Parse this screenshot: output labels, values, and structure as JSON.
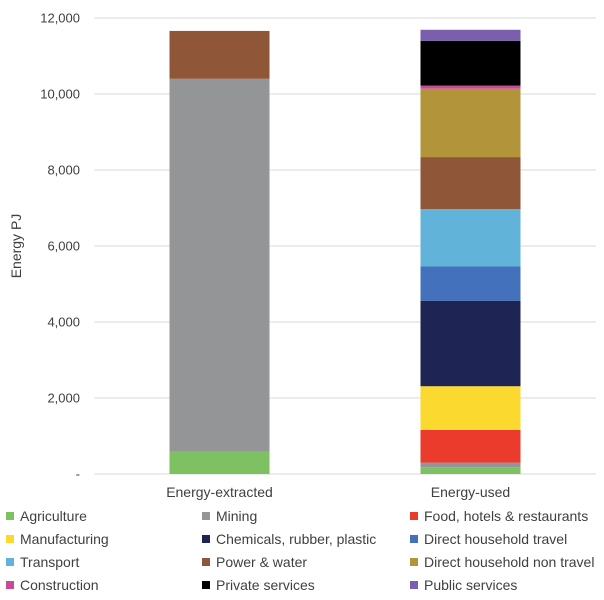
{
  "chart_data": {
    "type": "bar",
    "stacked": true,
    "ylabel": "Energy PJ",
    "ylim": [
      0,
      12000
    ],
    "yticks": [
      {
        "value": 0,
        "label": "-"
      },
      {
        "value": 2000,
        "label": "2,000"
      },
      {
        "value": 4000,
        "label": "4,000"
      },
      {
        "value": 6000,
        "label": "6,000"
      },
      {
        "value": 8000,
        "label": "8,000"
      },
      {
        "value": 10000,
        "label": "10,000"
      },
      {
        "value": 12000,
        "label": "12,000"
      }
    ],
    "grid": true,
    "legend_position": "bottom",
    "categories": [
      "Energy-extracted",
      "Energy-used"
    ],
    "series": [
      {
        "name": "Agriculture",
        "color": "#7ec162",
        "values": [
          590,
          180
        ]
      },
      {
        "name": "Mining",
        "color": "#939597",
        "values": [
          9810,
          120
        ]
      },
      {
        "name": "Food, hotels & restaurants",
        "color": "#ea3b2c",
        "values": [
          0,
          860
        ]
      },
      {
        "name": "Manufacturing",
        "color": "#fbd92e",
        "values": [
          0,
          1150
        ]
      },
      {
        "name": "Chemicals, rubber, plastic",
        "color": "#1e2453",
        "values": [
          0,
          2250
        ]
      },
      {
        "name": "Direct household travel",
        "color": "#4471bc",
        "values": [
          0,
          900
        ]
      },
      {
        "name": "Transport",
        "color": "#62b3d9",
        "values": [
          0,
          1510
        ]
      },
      {
        "name": "Power & water",
        "color": "#8f5637",
        "values": [
          1260,
          1370
        ]
      },
      {
        "name": "Direct household non travel",
        "color": "#b2943a",
        "values": [
          0,
          1800
        ]
      },
      {
        "name": "Construction",
        "color": "#c84b98",
        "values": [
          0,
          80
        ]
      },
      {
        "name": "Private services",
        "color": "#000000",
        "values": [
          0,
          1180
        ]
      },
      {
        "name": "Public services",
        "color": "#7a5fac",
        "values": [
          0,
          290
        ]
      }
    ]
  }
}
